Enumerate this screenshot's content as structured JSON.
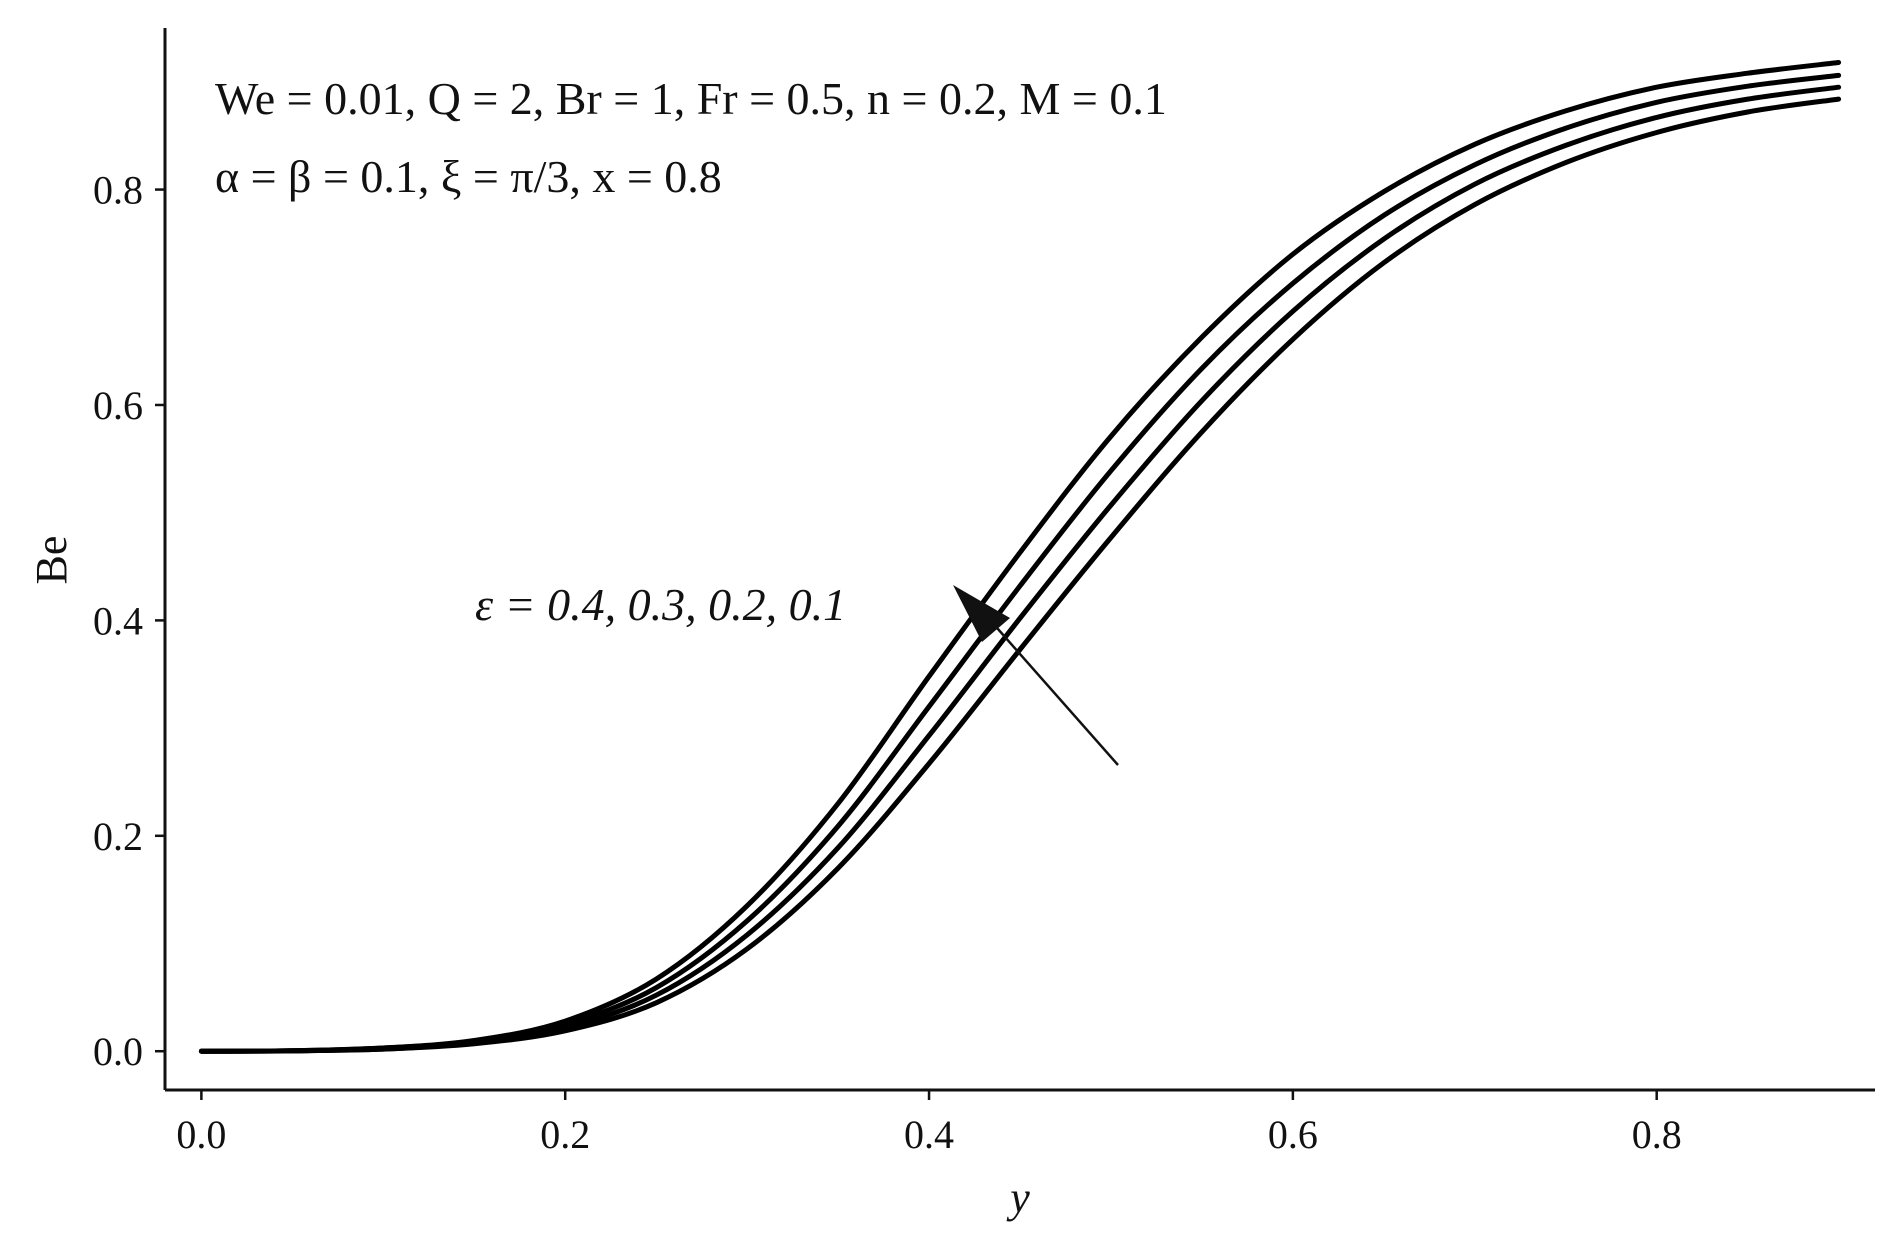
{
  "chart_data": {
    "type": "line",
    "xlabel": "y",
    "ylabel": "Be",
    "xlim": [
      -0.02,
      0.92
    ],
    "ylim": [
      -0.036,
      0.95
    ],
    "xticks": [
      {
        "value": 0.0,
        "label": "0.0"
      },
      {
        "value": 0.2,
        "label": "0.2"
      },
      {
        "value": 0.4,
        "label": "0.4"
      },
      {
        "value": 0.6,
        "label": "0.6"
      },
      {
        "value": 0.8,
        "label": "0.8"
      }
    ],
    "yticks": [
      {
        "value": 0.0,
        "label": "0.0"
      },
      {
        "value": 0.2,
        "label": "0.2"
      },
      {
        "value": 0.4,
        "label": "0.4"
      },
      {
        "value": 0.6,
        "label": "0.6"
      },
      {
        "value": 0.8,
        "label": "0.8"
      }
    ],
    "grid": false,
    "line_color": "#000000",
    "x": [
      0.0,
      0.05,
      0.1,
      0.15,
      0.2,
      0.25,
      0.3,
      0.35,
      0.4,
      0.45,
      0.5,
      0.55,
      0.6,
      0.65,
      0.7,
      0.75,
      0.8,
      0.85,
      0.9
    ],
    "series": [
      {
        "values": [
          0.0,
          0.0005,
          0.003,
          0.01,
          0.028,
          0.067,
          0.135,
          0.23,
          0.348,
          0.463,
          0.571,
          0.663,
          0.74,
          0.798,
          0.842,
          0.873,
          0.895,
          0.908,
          0.918
        ]
      },
      {
        "values": [
          0.0,
          0.0004,
          0.003,
          0.009,
          0.025,
          0.059,
          0.121,
          0.209,
          0.32,
          0.432,
          0.539,
          0.634,
          0.713,
          0.776,
          0.823,
          0.857,
          0.881,
          0.896,
          0.906
        ]
      },
      {
        "values": [
          0.0,
          0.0004,
          0.002,
          0.008,
          0.022,
          0.052,
          0.108,
          0.189,
          0.293,
          0.402,
          0.507,
          0.604,
          0.687,
          0.754,
          0.805,
          0.841,
          0.867,
          0.884,
          0.895
        ]
      },
      {
        "values": [
          0.0,
          0.0003,
          0.002,
          0.007,
          0.019,
          0.045,
          0.095,
          0.17,
          0.267,
          0.373,
          0.477,
          0.575,
          0.661,
          0.732,
          0.786,
          0.825,
          0.853,
          0.872,
          0.884
        ]
      }
    ],
    "annotations": {
      "params_line1": "We = 0.01, Q = 2, Br = 1, Fr = 0.5, n = 0.2, M = 0.1",
      "params_line2": "α = β = 0.1, ξ = π/3, x = 0.8",
      "epsilon_label": "ε = 0.4, 0.3, 0.2, 0.1"
    }
  }
}
